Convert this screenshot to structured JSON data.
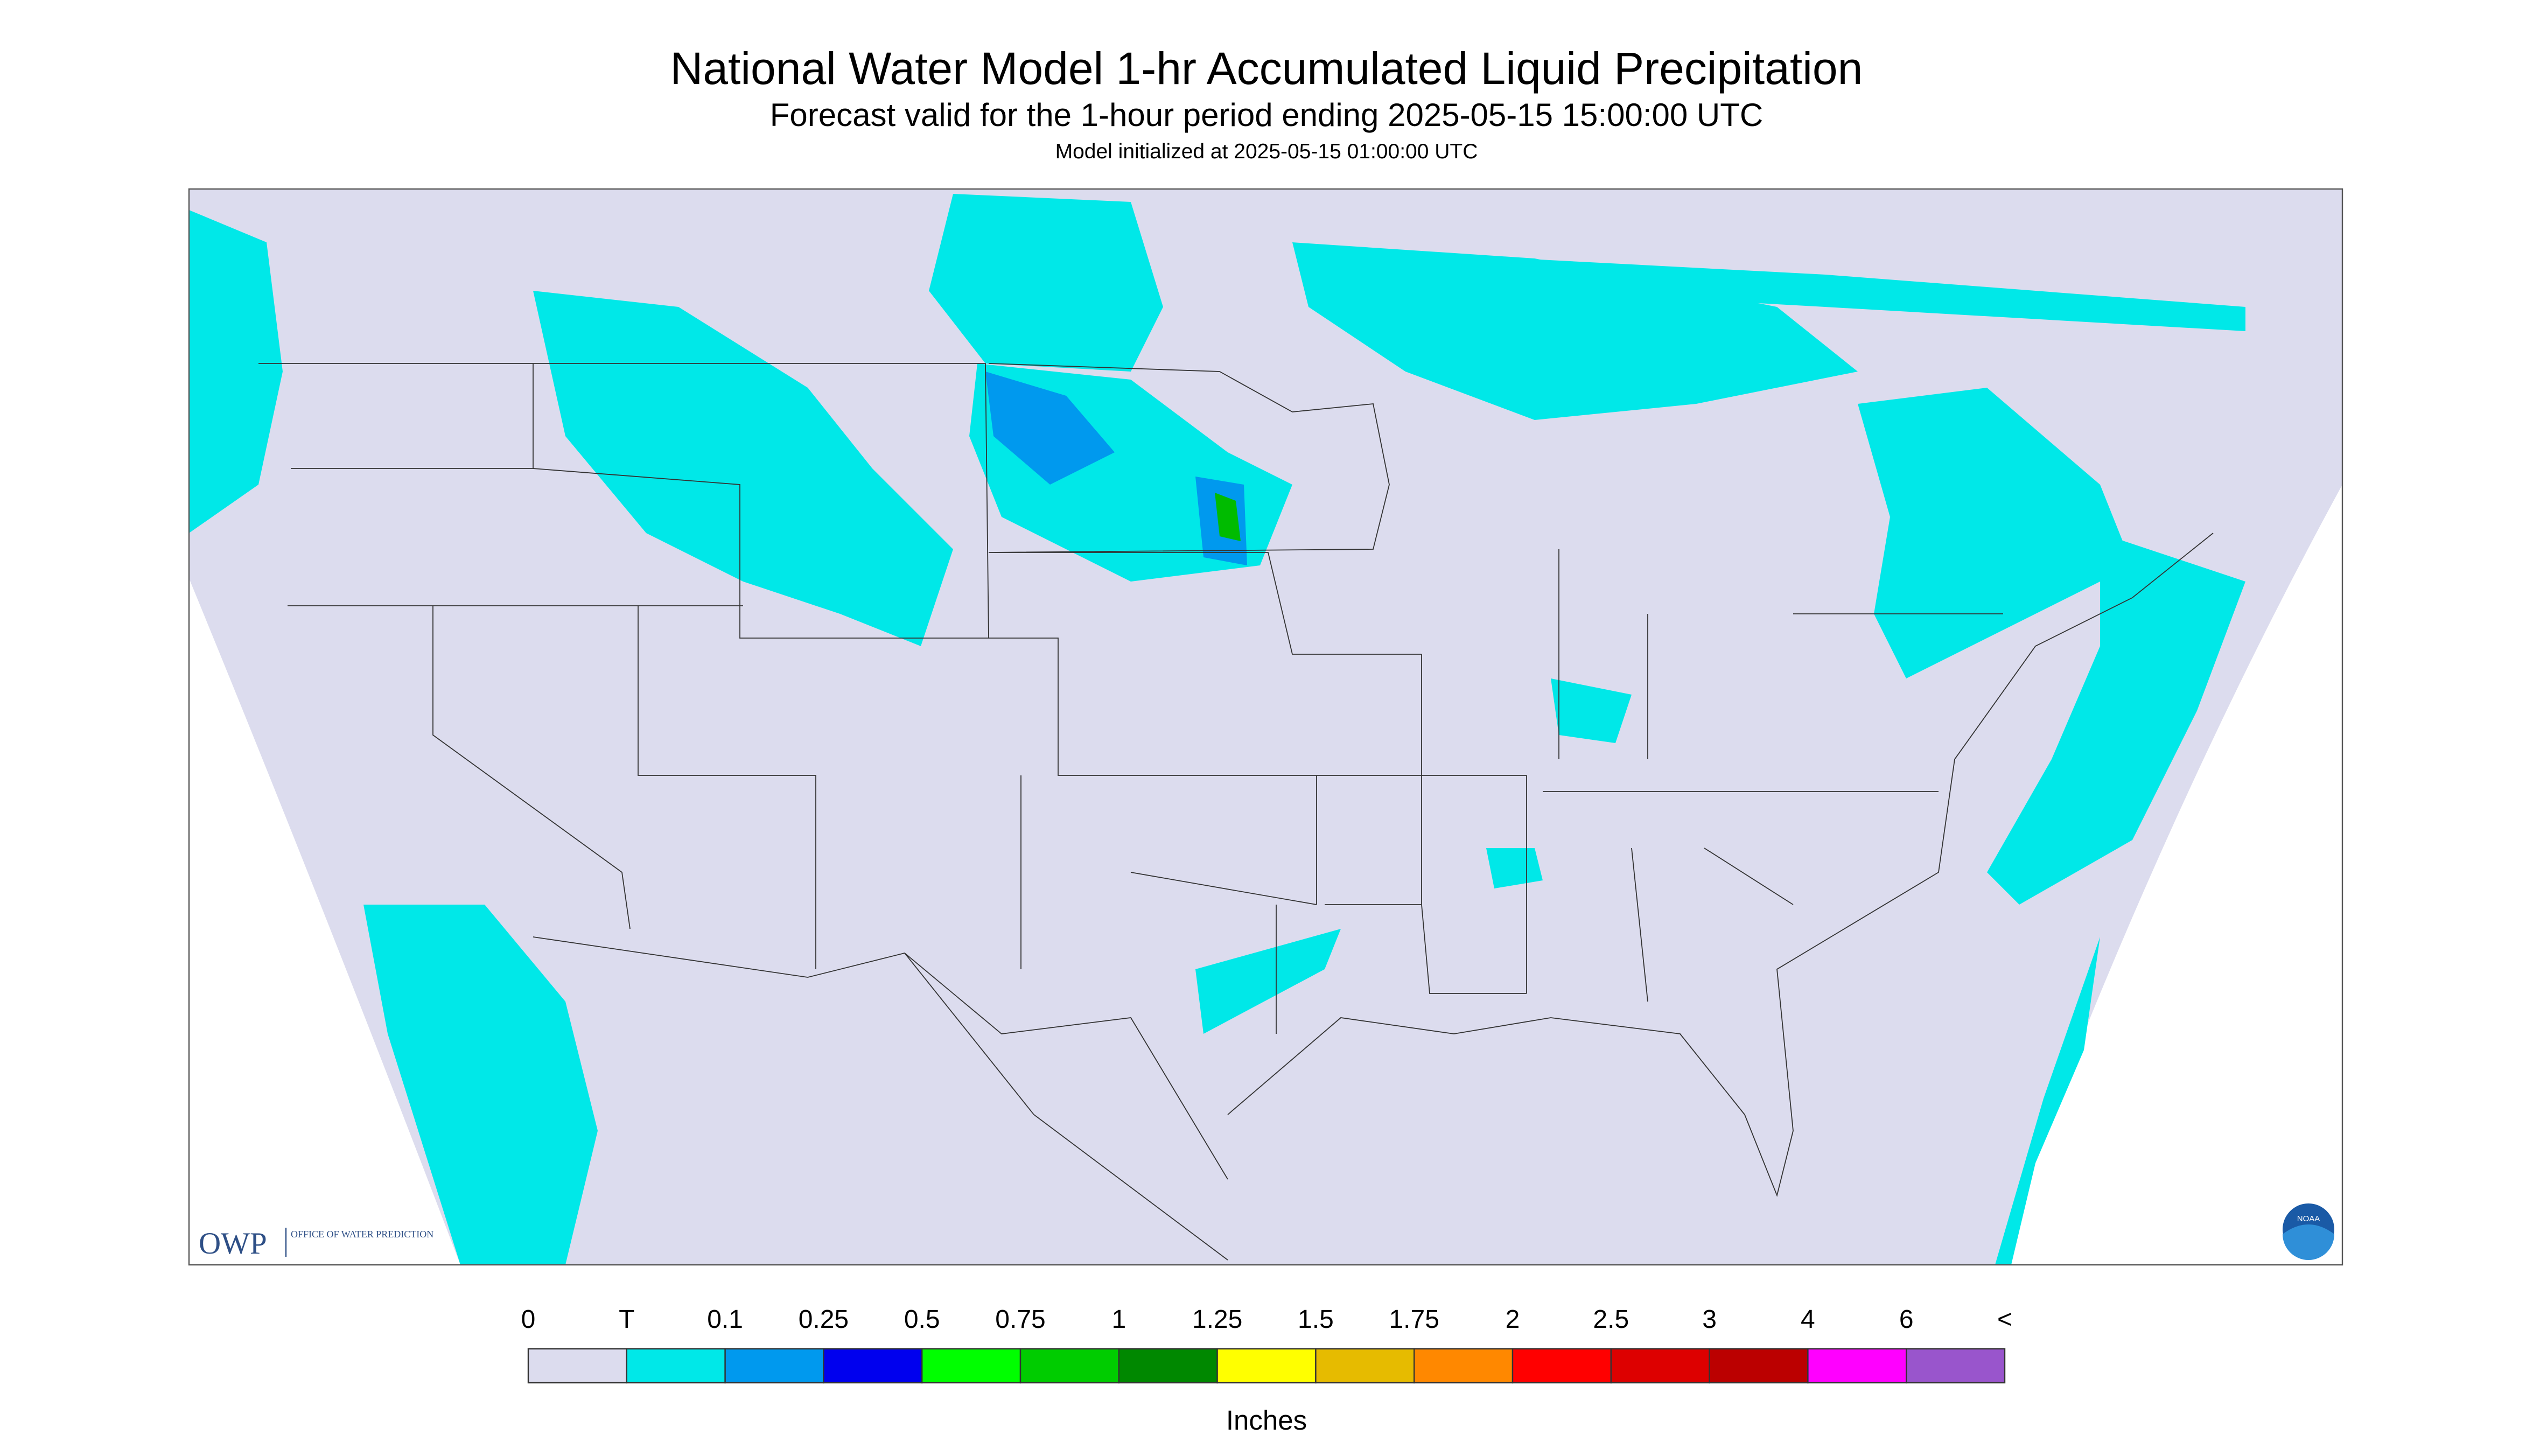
{
  "header": {
    "title": "National Water Model 1-hr Accumulated Liquid Precipitation",
    "subtitle": "Forecast valid for the 1-hour period ending 2025-05-15 15:00:00 UTC",
    "init": "Model initialized at 2025-05-15 01:00:00 UTC"
  },
  "legend": {
    "labels": [
      "0",
      "T",
      "0.1",
      "0.25",
      "0.5",
      "0.75",
      "1",
      "1.25",
      "1.5",
      "1.75",
      "2",
      "2.5",
      "3",
      "4",
      "6",
      "<"
    ],
    "colors": [
      "#dcdcee",
      "#00e8e8",
      "#0099ee",
      "#0000ee",
      "#00ff00",
      "#00cc00",
      "#008800",
      "#ffff00",
      "#e6bb00",
      "#ff8800",
      "#ff0000",
      "#dd0000",
      "#bb0000",
      "#ff00ff",
      "#9955cc"
    ],
    "unit": "Inches"
  },
  "logos": {
    "owp": "OWP",
    "owp_full": "OFFICE OF WATER PREDICTION",
    "noaa": "NOAA"
  }
}
